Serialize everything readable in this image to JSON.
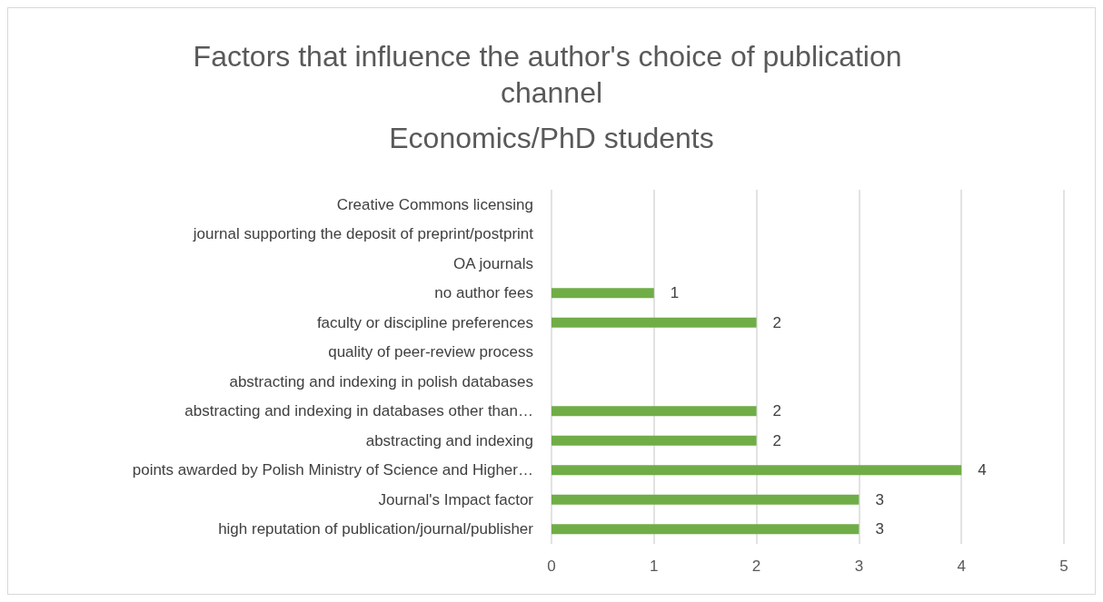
{
  "chart_data": {
    "type": "bar",
    "orientation": "horizontal",
    "title": "Factors that influence the author's choice of publication channel",
    "subtitle": "Economics/PhD students",
    "categories": [
      "Creative Commons licensing",
      "journal supporting the deposit of preprint/postprint",
      "OA journals",
      "no author fees",
      "faculty or discipline preferences",
      "quality of peer-review process",
      "abstracting and indexing in polish databases",
      "abstracting and indexing in databases other than…",
      "abstracting and indexing",
      "points awarded by Polish Ministry of Science and Higher…",
      "Journal's Impact factor",
      "high reputation of publication/journal/publisher"
    ],
    "values": [
      0,
      0,
      0,
      1,
      2,
      0,
      0,
      2,
      2,
      4,
      3,
      3
    ],
    "value_labels": [
      null,
      null,
      null,
      "1",
      "2",
      null,
      null,
      "2",
      "2",
      "4",
      "3",
      "3"
    ],
    "color": "#70ad47",
    "xlim": [
      0,
      5
    ],
    "xticks": [
      0,
      1,
      2,
      3,
      4,
      5
    ],
    "grid": "x"
  }
}
